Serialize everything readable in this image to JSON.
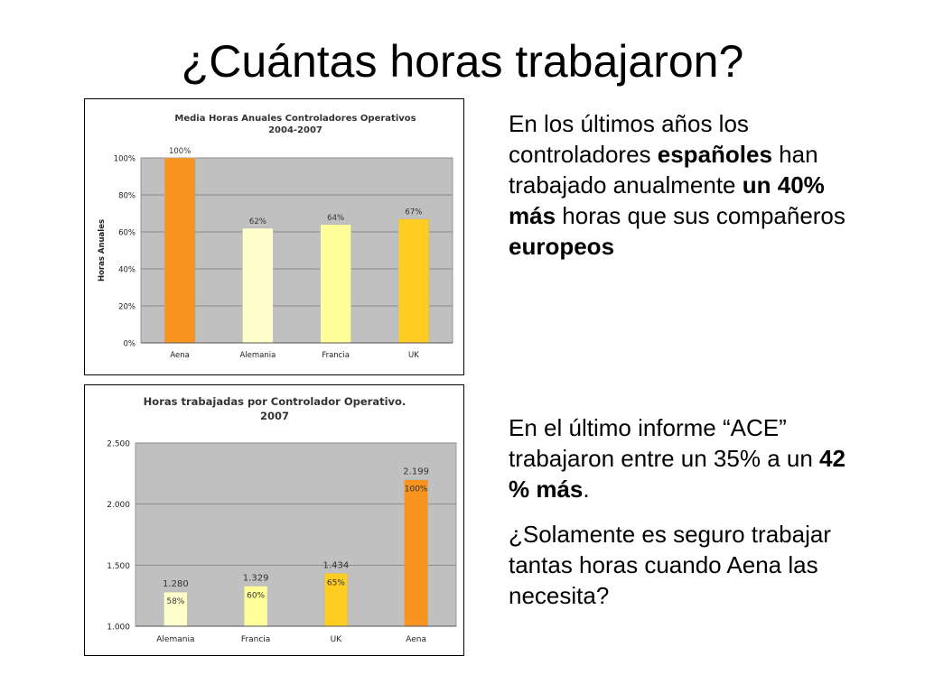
{
  "slide": {
    "title": "¿Cuántas horas trabajaron?",
    "para1": [
      {
        "text": "En los últimos años los controladores ",
        "bold": false
      },
      {
        "text": "españoles",
        "bold": true
      },
      {
        "text": " han trabajado anualmente ",
        "bold": false
      },
      {
        "text": "un 40% más",
        "bold": true
      },
      {
        "text": " horas que sus compañeros ",
        "bold": false
      },
      {
        "text": "europeos",
        "bold": true
      }
    ],
    "para2": [
      {
        "text": "En el último informe “ACE” trabajaron entre un 35% a un ",
        "bold": false
      },
      {
        "text": "42 % más",
        "bold": true
      },
      {
        "text": ".",
        "bold": false
      }
    ],
    "para3": [
      {
        "text": "¿Solamente es seguro trabajar tantas horas cuando Aena las necesita?",
        "bold": false
      }
    ]
  },
  "chart_data": [
    {
      "type": "bar",
      "title": "Media Horas Anuales Controladores Operativos 2004-2007",
      "title_lines": [
        "Media Horas Anuales Controladores Operativos",
        "2004-2007"
      ],
      "ylabel": "Horas Anuales",
      "xlabel": "",
      "categories": [
        "Aena",
        "Alemania",
        "Francia",
        "UK"
      ],
      "values": [
        100,
        62,
        64,
        67
      ],
      "data_labels": [
        "100%",
        "62%",
        "64%",
        "67%"
      ],
      "ylim": [
        0,
        100
      ],
      "yticks": [
        0,
        20,
        40,
        60,
        80,
        100
      ],
      "ytick_labels": [
        "0%",
        "20%",
        "40%",
        "60%",
        "80%",
        "100%"
      ],
      "colors": [
        "#f7931e",
        "#ffffcc",
        "#ffff99",
        "#ffcc22"
      ],
      "plot_bg": "#c0c0c0",
      "grid": true,
      "legend": "none"
    },
    {
      "type": "bar",
      "title": "Horas trabajadas por Controlador Operativo. 2007",
      "title_lines": [
        "Horas trabajadas por Controlador Operativo.",
        "2007"
      ],
      "ylabel": "",
      "xlabel": "",
      "categories": [
        "Alemania",
        "Francia",
        "UK",
        "Aena"
      ],
      "values": [
        1280,
        1329,
        1434,
        2199
      ],
      "value_labels": [
        "1.280",
        "1.329",
        "1.434",
        "2.199"
      ],
      "pct_labels": [
        "58%",
        "60%",
        "65%",
        "100%"
      ],
      "ylim": [
        1000,
        2500
      ],
      "yticks": [
        1000,
        1500,
        2000,
        2500
      ],
      "ytick_labels": [
        "1.000",
        "1.500",
        "2.000",
        "2.500"
      ],
      "colors": [
        "#ffffcc",
        "#ffff99",
        "#ffcc22",
        "#f7931e"
      ],
      "plot_bg": "#c0c0c0",
      "grid": true,
      "legend": "none"
    }
  ]
}
